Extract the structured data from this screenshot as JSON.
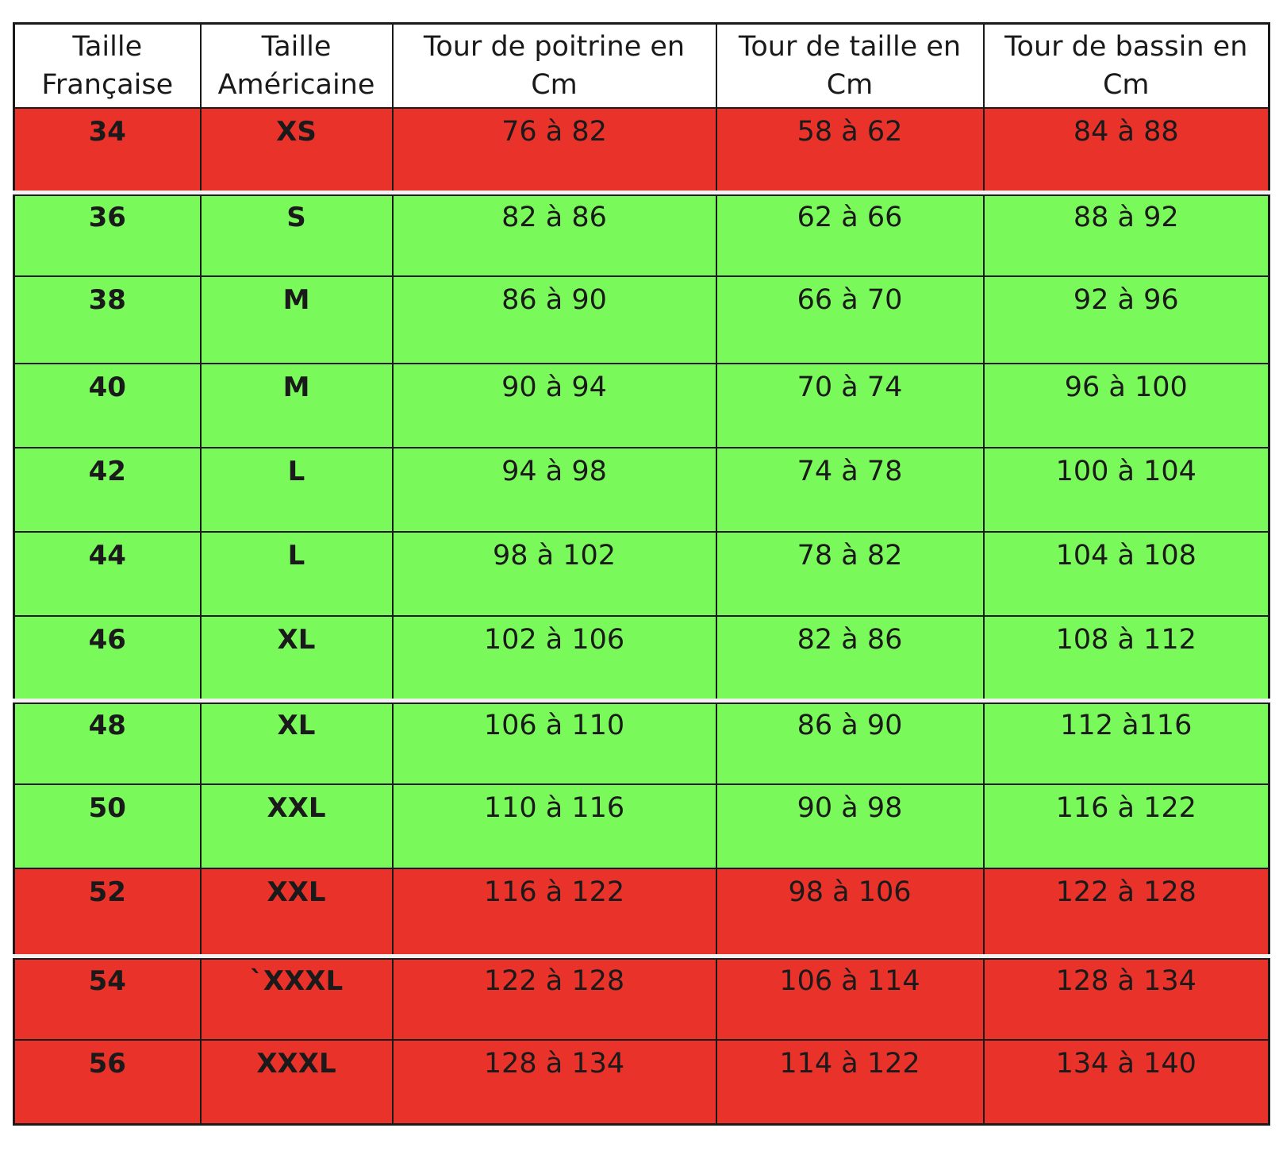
{
  "table": {
    "headers": [
      [
        "Taille",
        "Française"
      ],
      [
        "Taille",
        "Américaine"
      ],
      [
        "Tour de poitrine en",
        "Cm"
      ],
      [
        "Tour de taille en",
        "Cm"
      ],
      [
        "Tour de bassin en",
        "Cm"
      ]
    ],
    "rows": [
      {
        "fr": "34",
        "us": "XS",
        "poitrine": "76 à 82",
        "taille": "58 à 62",
        "bassin": "84 à 88",
        "status": "red",
        "color": "#e8322a"
      },
      {
        "fr": "36",
        "us": "S",
        "poitrine": "82 à 86",
        "taille": "62 à 66",
        "bassin": "88 à 92",
        "status": "green",
        "color": "#7afa5a"
      },
      {
        "fr": "38",
        "us": "M",
        "poitrine": "86 à 90",
        "taille": "66 à 70",
        "bassin": "92 à 96",
        "status": "green",
        "color": "#7afa5a"
      },
      {
        "fr": "40",
        "us": "M",
        "poitrine": "90 à 94",
        "taille": "70 à 74",
        "bassin": "96 à 100",
        "status": "green",
        "color": "#7afa5a"
      },
      {
        "fr": "42",
        "us": "L",
        "poitrine": "94 à 98",
        "taille": "74 à 78",
        "bassin": "100 à 104",
        "status": "green",
        "color": "#7afa5a"
      },
      {
        "fr": "44",
        "us": "L",
        "poitrine": "98 à 102",
        "taille": "78 à 82",
        "bassin": "104 à 108",
        "status": "green",
        "color": "#7afa5a"
      },
      {
        "fr": "46",
        "us": "XL",
        "poitrine": "102 à 106",
        "taille": "82 à 86",
        "bassin": "108 à 112",
        "status": "green",
        "color": "#7afa5a"
      },
      {
        "fr": "48",
        "us": "XL",
        "poitrine": "106 à 110",
        "taille": "86 à 90",
        "bassin": "112 à116",
        "status": "green",
        "color": "#7afa5a"
      },
      {
        "fr": "50",
        "us": "XXL",
        "poitrine": "110 à 116",
        "taille": "90 à 98",
        "bassin": "116 à 122",
        "status": "green",
        "color": "#7afa5a"
      },
      {
        "fr": "52",
        "us": "XXL",
        "poitrine": "116 à 122",
        "taille": "98 à 106",
        "bassin": "122 à 128",
        "status": "red",
        "color": "#e8322a"
      },
      {
        "fr": "54",
        "us": "`XXXL",
        "poitrine": "122 à 128",
        "taille": "106 à 114",
        "bassin": "128 à 134",
        "status": "red",
        "color": "#e8322a"
      },
      {
        "fr": "56",
        "us": "XXXL",
        "poitrine": "128 à 134",
        "taille": "114 à 122",
        "bassin": "134 à 140",
        "status": "red",
        "color": "#e8322a"
      }
    ]
  }
}
